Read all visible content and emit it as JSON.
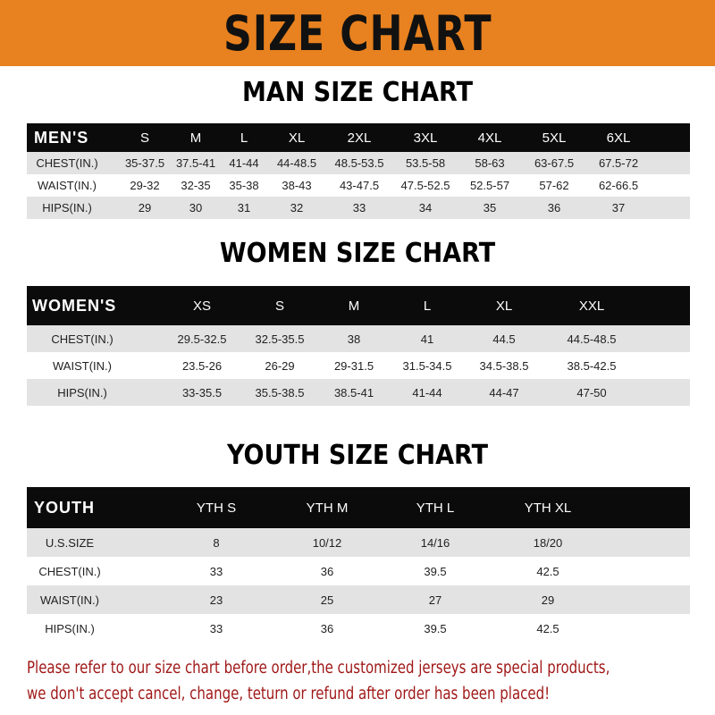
{
  "banner_title": "SIZE CHART",
  "colors": {
    "banner": "#e8811f",
    "header_row": "#0b0b0b",
    "stripe": "#e3e3e3",
    "note": "#a01818"
  },
  "tables": [
    {
      "title": "MAN SIZE CHART",
      "header_label": "MEN'S",
      "sizes": [
        "S",
        "M",
        "L",
        "XL",
        "2XL",
        "3XL",
        "4XL",
        "5XL",
        "6XL"
      ],
      "rows": [
        {
          "label": "CHEST(IN.)",
          "values": [
            "35-37.5",
            "37.5-41",
            "41-44",
            "44-48.5",
            "48.5-53.5",
            "53.5-58",
            "58-63",
            "63-67.5",
            "67.5-72"
          ]
        },
        {
          "label": "WAIST(IN.)",
          "values": [
            "29-32",
            "32-35",
            "35-38",
            "38-43",
            "43-47.5",
            "47.5-52.5",
            "52.5-57",
            "57-62",
            "62-66.5"
          ]
        },
        {
          "label": "HIPS(IN.)",
          "values": [
            "29",
            "30",
            "31",
            "32",
            "33",
            "34",
            "35",
            "36",
            "37"
          ]
        }
      ]
    },
    {
      "title": "WOMEN SIZE CHART",
      "header_label": "WOMEN'S",
      "sizes": [
        "XS",
        "S",
        "M",
        "L",
        "XL",
        "XXL"
      ],
      "rows": [
        {
          "label": "CHEST(IN.)",
          "values": [
            "29.5-32.5",
            "32.5-35.5",
            "38",
            "41",
            "44.5",
            "44.5-48.5"
          ]
        },
        {
          "label": "WAIST(IN.)",
          "values": [
            "23.5-26",
            "26-29",
            "29-31.5",
            "31.5-34.5",
            "34.5-38.5",
            "38.5-42.5"
          ]
        },
        {
          "label": "HIPS(IN.)",
          "values": [
            "33-35.5",
            "35.5-38.5",
            "38.5-41",
            "41-44",
            "44-47",
            "47-50"
          ]
        }
      ]
    },
    {
      "title": "YOUTH SIZE CHART",
      "header_label": "YOUTH",
      "sizes": [
        "YTH S",
        "YTH M",
        "YTH L",
        "YTH XL"
      ],
      "rows": [
        {
          "label": "U.S.SIZE",
          "values": [
            "8",
            "10/12",
            "14/16",
            "18/20"
          ]
        },
        {
          "label": "CHEST(IN.)",
          "values": [
            "33",
            "36",
            "39.5",
            "42.5"
          ]
        },
        {
          "label": "WAIST(IN.)",
          "values": [
            "23",
            "25",
            "27",
            "29"
          ]
        },
        {
          "label": "HIPS(IN.)",
          "values": [
            "33",
            "36",
            "39.5",
            "42.5"
          ]
        }
      ]
    }
  ],
  "note_lines": [
    "Please refer to our size chart before order,the customized jerseys are special products,",
    "we don't accept cancel, change, teturn or refund after order has been placed!"
  ]
}
